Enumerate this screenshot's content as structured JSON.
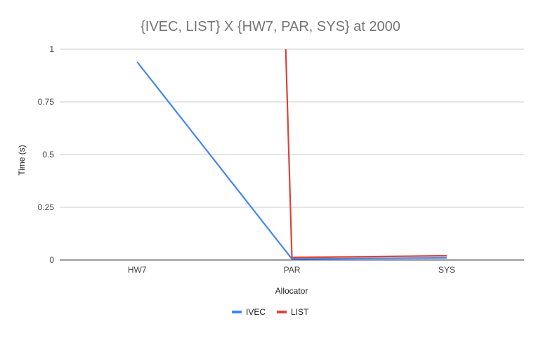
{
  "chart_data": {
    "type": "line",
    "title": "{IVEC, LIST} X {HW7, PAR, SYS} at 2000",
    "xlabel": "Allocator",
    "ylabel": "Time (s)",
    "categories": [
      "HW7",
      "PAR",
      "SYS"
    ],
    "ylim": [
      0,
      1
    ],
    "yticks": [
      0,
      0.25,
      0.5,
      0.75,
      1
    ],
    "ytick_labels": [
      "0",
      "0.25",
      "0.5",
      "0.75",
      "1"
    ],
    "grid": true,
    "legend_position": "bottom",
    "series": [
      {
        "name": "IVEC",
        "color": "#4285f4",
        "values": [
          0.94,
          0.005,
          0.01
        ]
      },
      {
        "name": "LIST",
        "color": "#db4437",
        "values": [
          null,
          0.012,
          0.02
        ],
        "note_clipped_above": true
      }
    ]
  }
}
